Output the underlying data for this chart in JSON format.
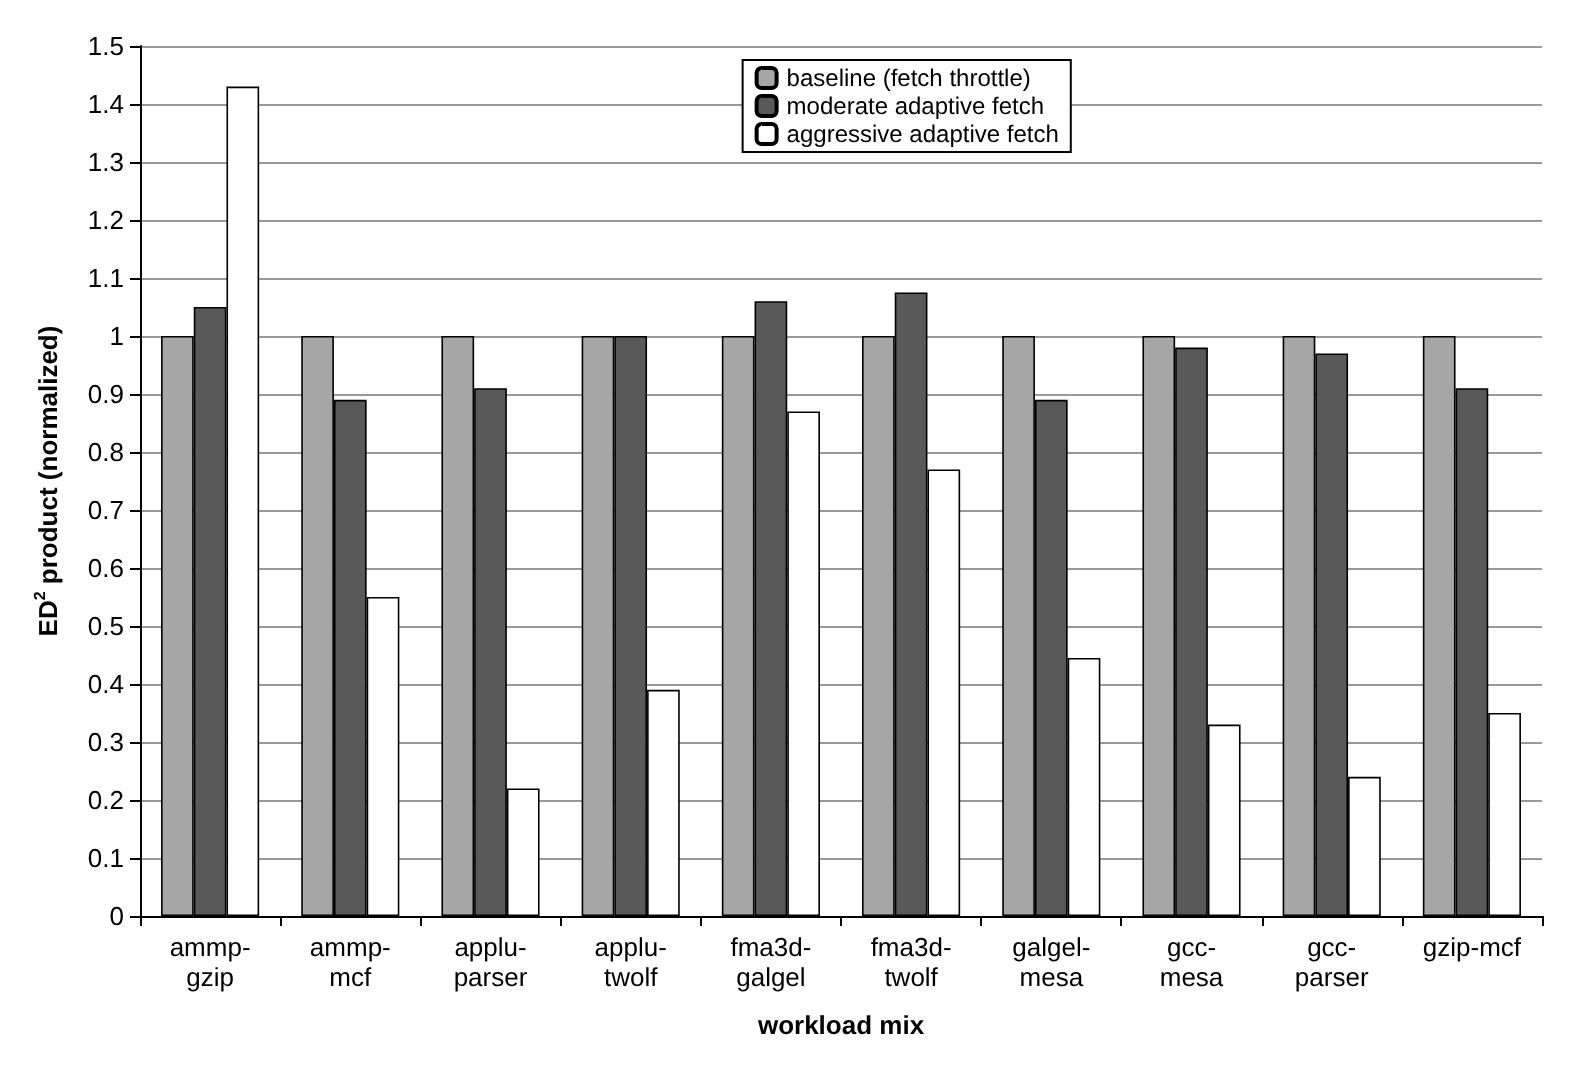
{
  "chart_data": {
    "type": "bar",
    "xlabel": "workload mix",
    "ylabel": "ED$^{2}$ product (normalized)",
    "categories": [
      "ammp-\ngzip",
      "ammp-\nmcf",
      "applu-\nparser",
      "applu-\ntwolf",
      "fma3d-\ngalgel",
      "fma3d-\ntwolf",
      "galgel-\nmesa",
      "gcc-\nmesa",
      "gcc-\nparser",
      "gzip-mcf"
    ],
    "series": [
      {
        "name": "baseline (fetch throttle)",
        "color": "#a6a6a6",
        "values": [
          1,
          1,
          1,
          1,
          1,
          1,
          1,
          1,
          1,
          1
        ]
      },
      {
        "name": "moderate adaptive fetch",
        "color": "#595959",
        "values": [
          1.05,
          0.89,
          0.91,
          1.0,
          1.06,
          1.075,
          0.89,
          0.98,
          0.97,
          0.91
        ]
      },
      {
        "name": "aggressive adaptive fetch",
        "color": "#ffffff",
        "values": [
          1.43,
          0.55,
          0.22,
          0.39,
          0.87,
          0.77,
          0.445,
          0.33,
          0.24,
          0.35
        ]
      }
    ],
    "ylim": [
      0,
      1.5
    ],
    "yticks": [
      0,
      0.1,
      0.2,
      0.3,
      0.4,
      0.5,
      0.6,
      0.7,
      0.8,
      0.9,
      1,
      1.1,
      1.2,
      1.3,
      1.4,
      1.5
    ],
    "grid": "y",
    "legend": "top"
  }
}
